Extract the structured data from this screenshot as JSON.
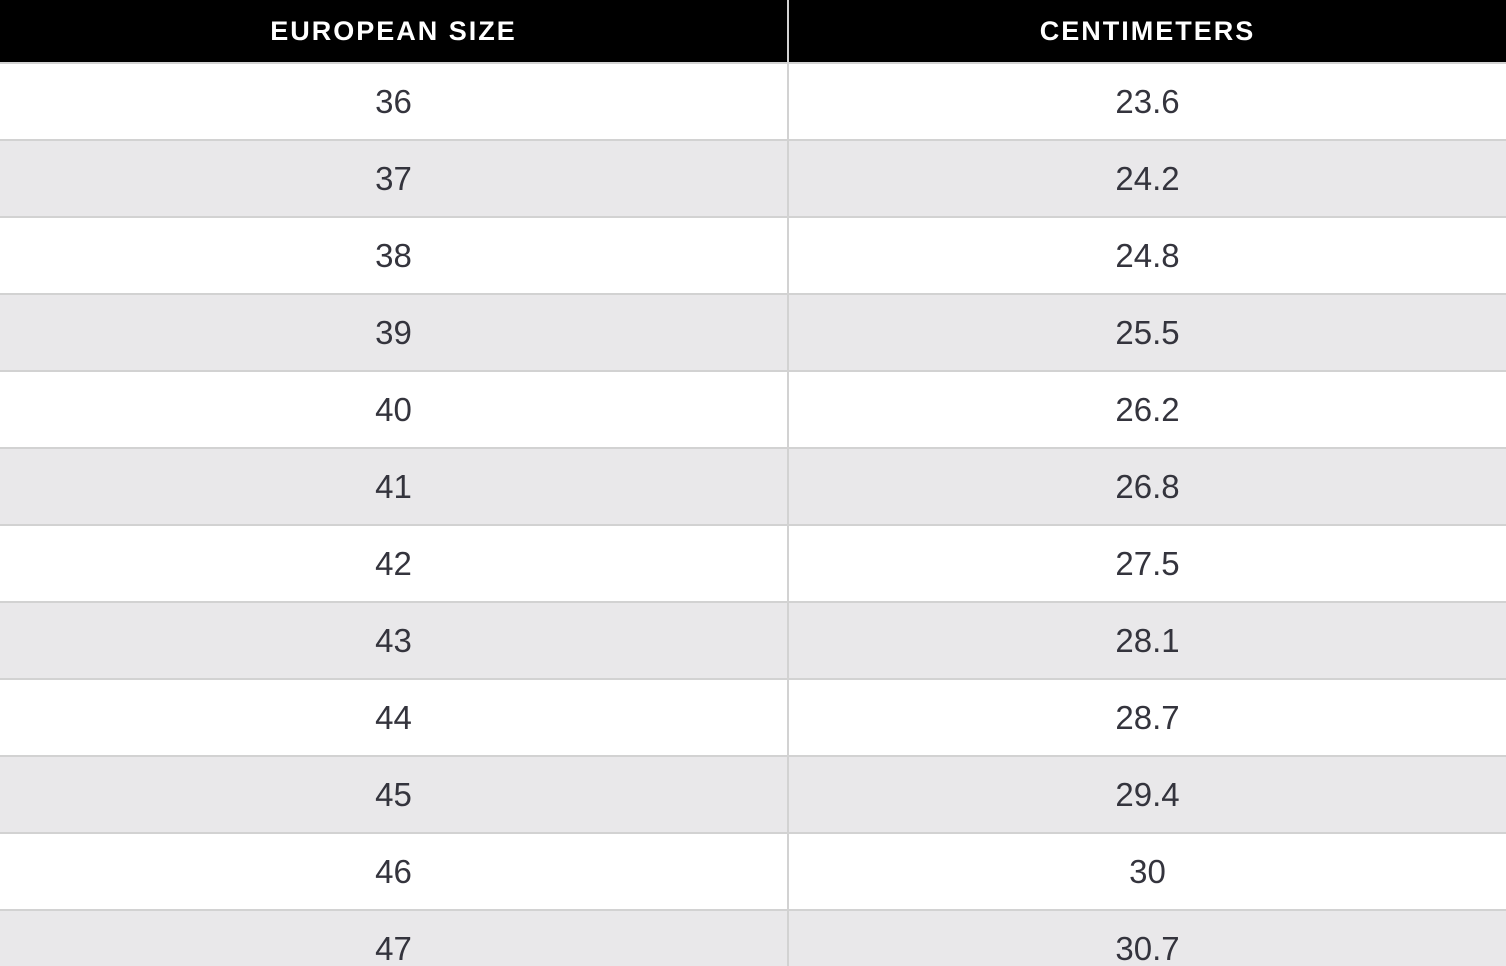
{
  "chart_data": {
    "type": "table",
    "columns": [
      "EUROPEAN SIZE",
      "CENTIMETERS"
    ],
    "rows": [
      [
        "36",
        "23.6"
      ],
      [
        "37",
        "24.2"
      ],
      [
        "38",
        "24.8"
      ],
      [
        "39",
        "25.5"
      ],
      [
        "40",
        "26.2"
      ],
      [
        "41",
        "26.8"
      ],
      [
        "42",
        "27.5"
      ],
      [
        "43",
        "28.1"
      ],
      [
        "44",
        "28.7"
      ],
      [
        "45",
        "29.4"
      ],
      [
        "46",
        "30"
      ],
      [
        "47",
        "30.7"
      ]
    ],
    "layout": {
      "header_position": "top",
      "alternating_row_shading": true,
      "last_row_clipped": true
    }
  },
  "colors": {
    "header-bg": "#000000",
    "header-text": "#ffffff",
    "row-bg": "#ffffff",
    "row-alt-bg": "#e9e8ea",
    "border": "#d2d2d2",
    "cell-text": "#34343d"
  }
}
